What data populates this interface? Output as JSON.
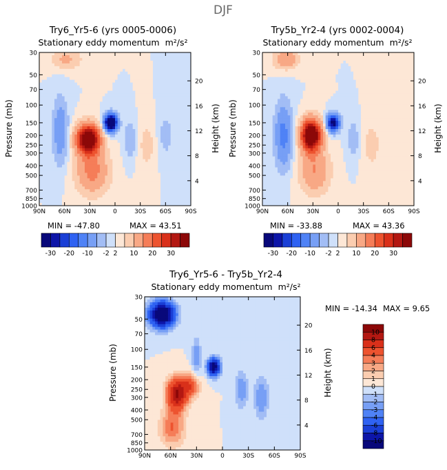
{
  "page_title": "DJF",
  "pressure_label": "Pressure (mb)",
  "height_label": "Height (km)",
  "units_suffix": "m²/s²",
  "pressure_ticks": [
    "30",
    "50",
    "70",
    "100",
    "150",
    "200",
    "250",
    "300",
    "400",
    "500",
    "700",
    "850",
    "1000"
  ],
  "height_ticks": [
    "20",
    "16",
    "12",
    "8",
    "4"
  ],
  "lat_ticks": [
    "90N",
    "60N",
    "30N",
    "0",
    "30S",
    "60S",
    "90S"
  ],
  "colors": {
    "negative_scale": [
      "#08087a",
      "#0d15a8",
      "#1a3fd6",
      "#2f62f2",
      "#4f82f6",
      "#779ff5",
      "#a2bdf5",
      "#cfe0fa"
    ],
    "positive_scale": [
      "#fde7d6",
      "#fbcdb0",
      "#f8a885",
      "#f57d58",
      "#ed532f",
      "#d9301a",
      "#b31812",
      "#8c0808"
    ],
    "background_field": "#d8e7fb"
  },
  "chart_data": [
    {
      "type": "heatmap",
      "title": "Try6_Yr5-6 (yrs 0005-0006)",
      "subtitle": "Stationary eddy momentum",
      "xlabel": "",
      "ylabel": "Pressure (mb)",
      "y2label": "Height (km)",
      "xlim": [
        90,
        -90
      ],
      "ylim": [
        1000,
        30
      ],
      "y2lim": [
        0,
        24
      ],
      "min_label": "MIN = -47.80",
      "max_label": "MAX =  43.51",
      "min": -47.8,
      "max": 43.51,
      "contour_levels": [
        -30,
        -25,
        -20,
        -15,
        -10,
        -5,
        -2,
        0,
        2,
        5,
        10,
        15,
        20,
        25,
        30
      ],
      "colorbar_labels": [
        "-30",
        "-20",
        "-10",
        "-2",
        "2",
        "10",
        "20",
        "30"
      ],
      "features": [
        {
          "lat": 32,
          "p": 220,
          "value": 43.5,
          "lat_width": 9,
          "logp_width": 0.22
        },
        {
          "lat": 27,
          "p": 450,
          "value": 12,
          "lat_width": 13,
          "logp_width": 0.35
        },
        {
          "lat": 5,
          "p": 150,
          "value": -47.8,
          "lat_width": 5,
          "logp_width": 0.13
        },
        {
          "lat": 65,
          "p": 180,
          "value": -9,
          "lat_width": 6,
          "logp_width": 0.5
        },
        {
          "lat": 58,
          "p": 35,
          "value": 6,
          "lat_width": 12,
          "logp_width": 0.15
        },
        {
          "lat": -18,
          "p": 220,
          "value": -5,
          "lat_width": 5,
          "logp_width": 0.3
        },
        {
          "lat": -38,
          "p": 250,
          "value": 3,
          "lat_width": 8,
          "logp_width": 0.4
        },
        {
          "lat": -60,
          "p": 200,
          "value": -3,
          "lat_width": 7,
          "logp_width": 0.4
        }
      ]
    },
    {
      "type": "heatmap",
      "title": "Try5b_Yr2-4 (yrs 0002-0004)",
      "subtitle": "Stationary eddy momentum",
      "xlabel": "",
      "ylabel": "Pressure (mb)",
      "y2label": "Height (km)",
      "xlim": [
        90,
        -90
      ],
      "ylim": [
        1000,
        30
      ],
      "y2lim": [
        0,
        24
      ],
      "min_label": "MIN = -33.88",
      "max_label": "MAX =  43.36",
      "min": -33.88,
      "max": 43.36,
      "contour_levels": [
        -30,
        -25,
        -20,
        -15,
        -10,
        -5,
        -2,
        0,
        2,
        5,
        10,
        15,
        20,
        25,
        30
      ],
      "colorbar_labels": [
        "-30",
        "-20",
        "-10",
        "-2",
        "2",
        "10",
        "20",
        "30"
      ],
      "features": [
        {
          "lat": 32,
          "p": 200,
          "value": 43.4,
          "lat_width": 8,
          "logp_width": 0.24
        },
        {
          "lat": 28,
          "p": 450,
          "value": 10,
          "lat_width": 12,
          "logp_width": 0.35
        },
        {
          "lat": 6,
          "p": 150,
          "value": -33.9,
          "lat_width": 5,
          "logp_width": 0.13
        },
        {
          "lat": 65,
          "p": 200,
          "value": -12,
          "lat_width": 7,
          "logp_width": 0.5
        },
        {
          "lat": 62,
          "p": 35,
          "value": 9,
          "lat_width": 10,
          "logp_width": 0.15
        },
        {
          "lat": -18,
          "p": 220,
          "value": -4,
          "lat_width": 5,
          "logp_width": 0.3
        },
        {
          "lat": -40,
          "p": 250,
          "value": 3,
          "lat_width": 8,
          "logp_width": 0.4
        }
      ]
    },
    {
      "type": "heatmap",
      "title": "Try6_Yr5-6 - Try5b_Yr2-4",
      "subtitle": "Stationary eddy momentum",
      "xlabel": "",
      "ylabel": "Pressure (mb)",
      "y2label": "Height (km)",
      "xlim": [
        90,
        -90
      ],
      "ylim": [
        1000,
        30
      ],
      "y2lim": [
        0,
        24
      ],
      "min_label": "MIN = -14.34",
      "max_label": "MAX =    9.65",
      "min": -14.34,
      "max": 9.65,
      "contour_levels": [
        -10,
        -8,
        -6,
        -4,
        -3,
        -2,
        -1,
        0,
        1,
        2,
        3,
        4,
        6,
        8,
        10
      ],
      "colorbar_labels": [
        "10",
        "8",
        "6",
        "4",
        "3",
        "2",
        "1",
        "0",
        "-1",
        "-2",
        "-3",
        "-4",
        "-6",
        "-8",
        "-10"
      ],
      "features": [
        {
          "lat": 70,
          "p": 45,
          "value": -14.3,
          "lat_width": 10,
          "logp_width": 0.2
        },
        {
          "lat": 10,
          "p": 150,
          "value": -12,
          "lat_width": 5,
          "logp_width": 0.14
        },
        {
          "lat": 53,
          "p": 280,
          "value": 9.6,
          "lat_width": 8,
          "logp_width": 0.25
        },
        {
          "lat": 38,
          "p": 230,
          "value": 5,
          "lat_width": 8,
          "logp_width": 0.2
        },
        {
          "lat": 58,
          "p": 600,
          "value": 4,
          "lat_width": 10,
          "logp_width": 0.3
        },
        {
          "lat": 30,
          "p": 120,
          "value": -3,
          "lat_width": 4,
          "logp_width": 0.3
        },
        {
          "lat": -22,
          "p": 250,
          "value": -3,
          "lat_width": 5,
          "logp_width": 0.3
        },
        {
          "lat": -45,
          "p": 300,
          "value": -3,
          "lat_width": 6,
          "logp_width": 0.35
        }
      ]
    }
  ]
}
